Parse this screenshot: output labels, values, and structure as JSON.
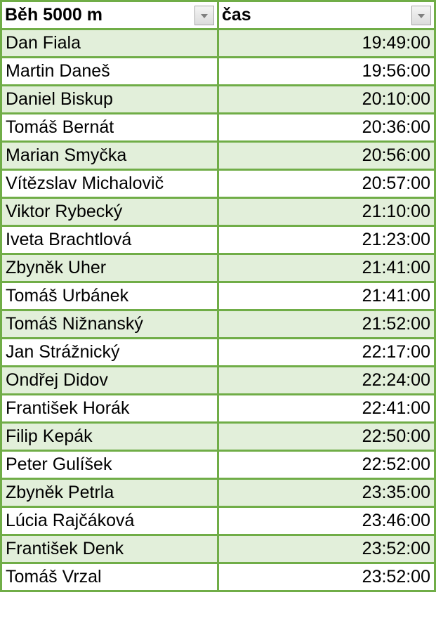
{
  "headers": {
    "name": "Běh 5000 m",
    "time": "čas",
    "filter_icon": "dropdown-arrow-icon"
  },
  "colors": {
    "border": "#70ad47",
    "band": "#e2efda"
  },
  "rows": [
    {
      "name": "Dan Fiala",
      "time": "19:49:00"
    },
    {
      "name": "Martin Daneš",
      "time": "19:56:00"
    },
    {
      "name": "Daniel Biskup",
      "time": "20:10:00"
    },
    {
      "name": "Tomáš Bernát",
      "time": "20:36:00"
    },
    {
      "name": "Marian Smyčka",
      "time": "20:56:00"
    },
    {
      "name": "Vítězslav Michalovič",
      "time": "20:57:00"
    },
    {
      "name": "Viktor Rybecký",
      "time": "21:10:00"
    },
    {
      "name": "Iveta Brachtlová",
      "time": "21:23:00"
    },
    {
      "name": "Zbyněk Uher",
      "time": "21:41:00"
    },
    {
      "name": "Tomáš Urbánek",
      "time": "21:41:00"
    },
    {
      "name": "Tomáš Nižnanský",
      "time": "21:52:00"
    },
    {
      "name": "Jan Strážnický",
      "time": "22:17:00"
    },
    {
      "name": "Ondřej Didov",
      "time": "22:24:00"
    },
    {
      "name": "František Horák",
      "time": "22:41:00"
    },
    {
      "name": "Filip Kepák",
      "time": "22:50:00"
    },
    {
      "name": "Peter Gulíšek",
      "time": "22:52:00"
    },
    {
      "name": "Zbyněk Petrla",
      "time": "23:35:00"
    },
    {
      "name": "Lúcia Rajčáková",
      "time": "23:46:00"
    },
    {
      "name": "František Denk",
      "time": "23:52:00"
    },
    {
      "name": "Tomáš Vrzal",
      "time": "23:52:00"
    }
  ]
}
